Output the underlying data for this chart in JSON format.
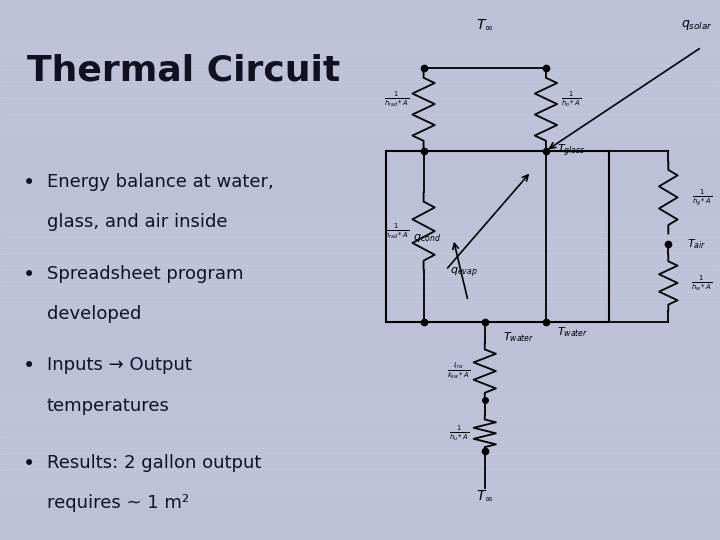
{
  "title": "Thermal Circuit",
  "bullets": [
    "Energy balance at water,",
    "  glass, and air inside",
    "Spreadsheet program",
    "  developed",
    "Inputs → Output",
    "  temperatures",
    "Results: 2 gallon output",
    "  requires ~ 1 m²"
  ],
  "bg_color": "#bcc0d8",
  "panel_bg": "#f8f8ff",
  "title_color": "#111122",
  "text_color": "#111122",
  "circuit_lw": 1.3,
  "dot_ms": 4.5
}
